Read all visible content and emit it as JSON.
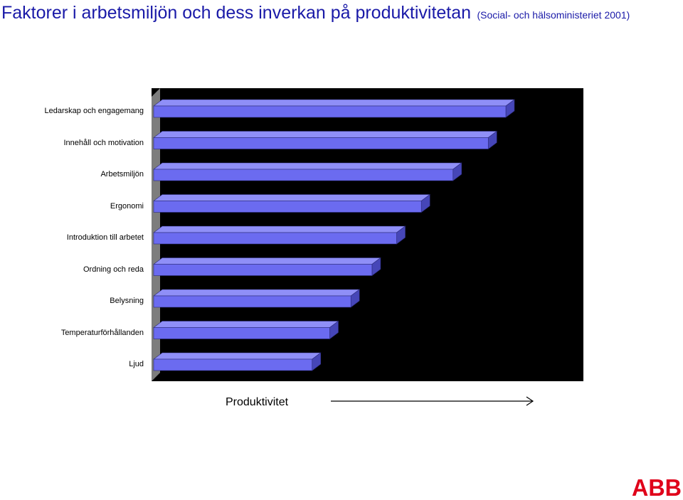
{
  "header": {
    "title": "Faktorer i arbetsmiljön och dess inverkan på produktivitetan",
    "source": "(Social- och hälsoministeriet 2001)"
  },
  "chart_data": {
    "type": "bar",
    "orientation": "horizontal",
    "style": "3d",
    "categories": [
      "Ledarskap och engagemang",
      "Innehåll och motivation",
      "Arbetsmiljön",
      "Ergonomi",
      "Introduktion till arbetet",
      "Ordning och reda",
      "Belysning",
      "Temperaturförhållanden",
      "Ljud"
    ],
    "values": [
      100,
      95,
      85,
      76,
      69,
      62,
      56,
      50,
      45
    ],
    "xlabel": "Produktivitet",
    "xlim": [
      0,
      100
    ],
    "grid": false,
    "colors": {
      "bar_front": "#6b6bf0",
      "bar_top": "#8f8ff7",
      "bar_side": "#4646b8",
      "plot_bg": "#000000",
      "wall": "#7d7d7d"
    }
  },
  "logo": {
    "text": "ABB",
    "color": "#e0001a"
  }
}
